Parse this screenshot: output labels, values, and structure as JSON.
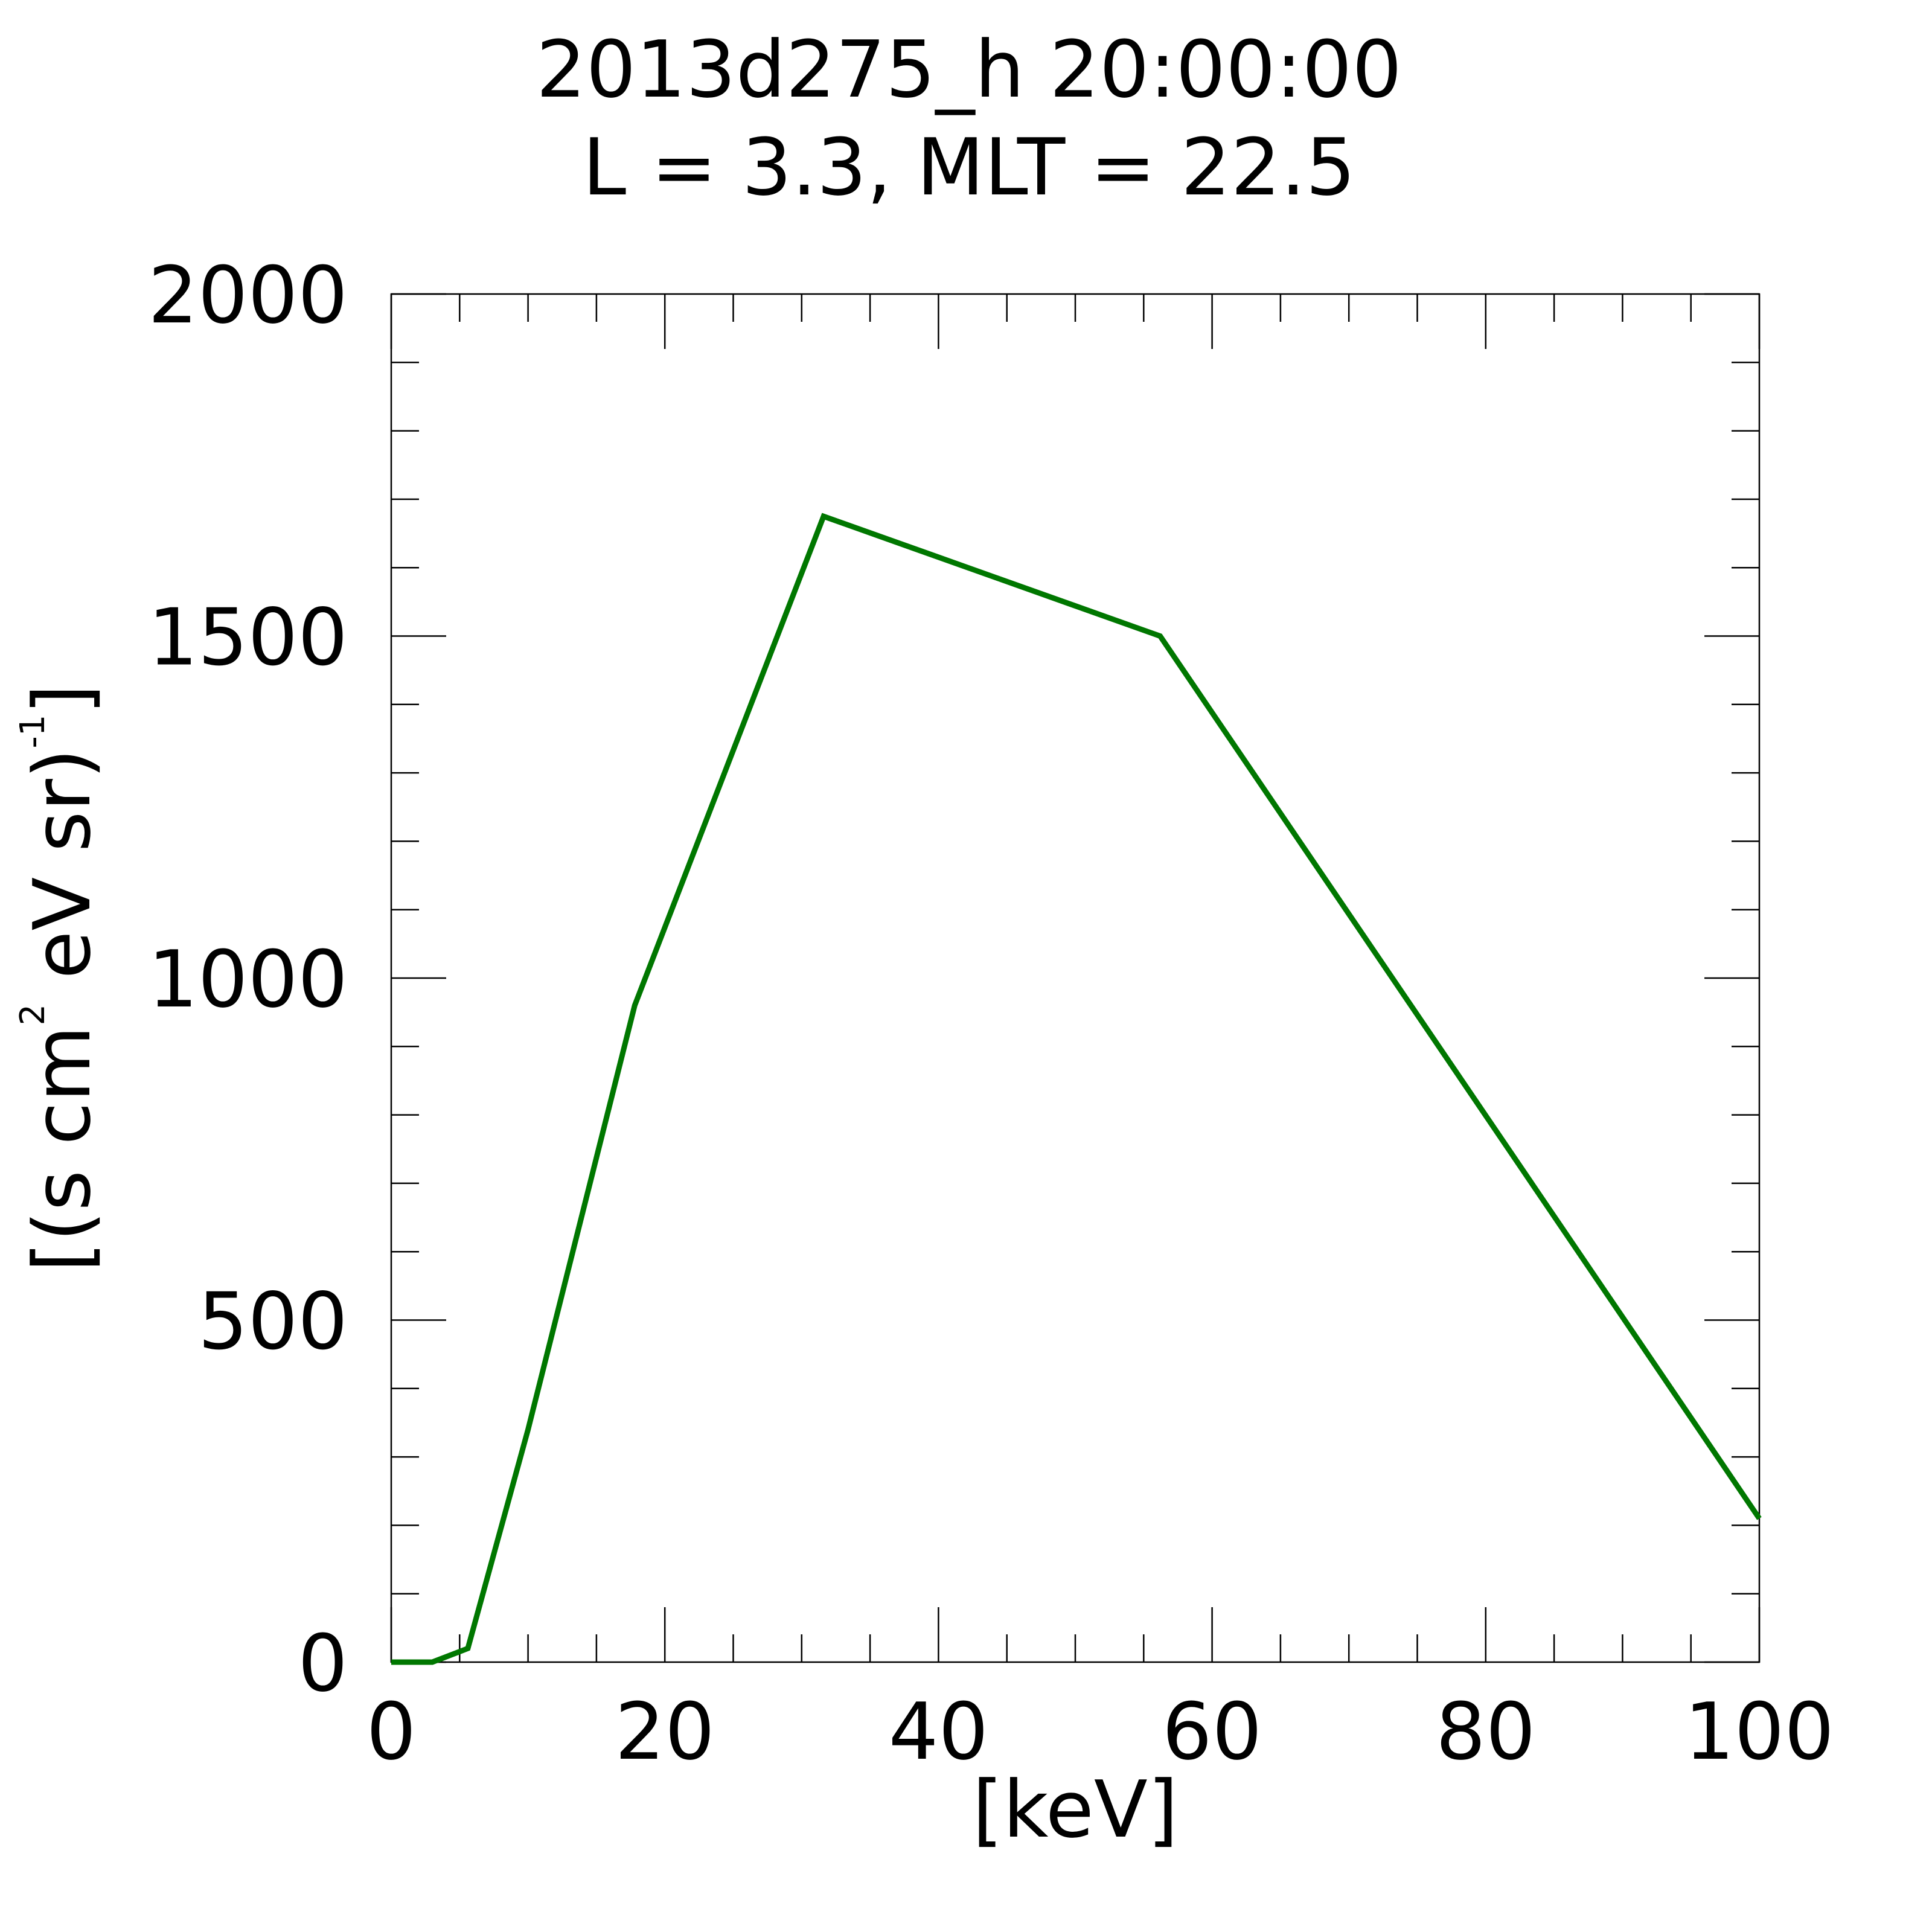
{
  "chart_data": {
    "type": "line",
    "title_line1": "2013d275_h  20:00:00",
    "title_line2": "L = 3.3, MLT = 22.5",
    "xlabel": "[keV]",
    "ylabel": {
      "part1": "[(s cm",
      "sup1": "2",
      "part2": " eV sr)",
      "sup2": "-1",
      "part3": "]"
    },
    "xlim": [
      0,
      100
    ],
    "ylim": [
      0,
      2000
    ],
    "x_ticks": [
      0,
      20,
      40,
      60,
      80,
      100
    ],
    "x_tick_labels": [
      "0",
      "20",
      "40",
      "60",
      "80",
      "100"
    ],
    "x_minor_step": 5,
    "y_ticks": [
      0,
      500,
      1000,
      1500,
      2000
    ],
    "y_tick_labels": [
      "0",
      "500",
      "1000",
      "1500",
      "2000"
    ],
    "y_minor_step": 100,
    "grid": false,
    "series": [
      {
        "color": "#007700",
        "x": [
          0,
          3,
          5.6,
          10,
          17.8,
          31.6,
          56.2,
          100
        ],
        "y": [
          0,
          0,
          20,
          340,
          960,
          1675,
          1500,
          210
        ]
      }
    ]
  }
}
